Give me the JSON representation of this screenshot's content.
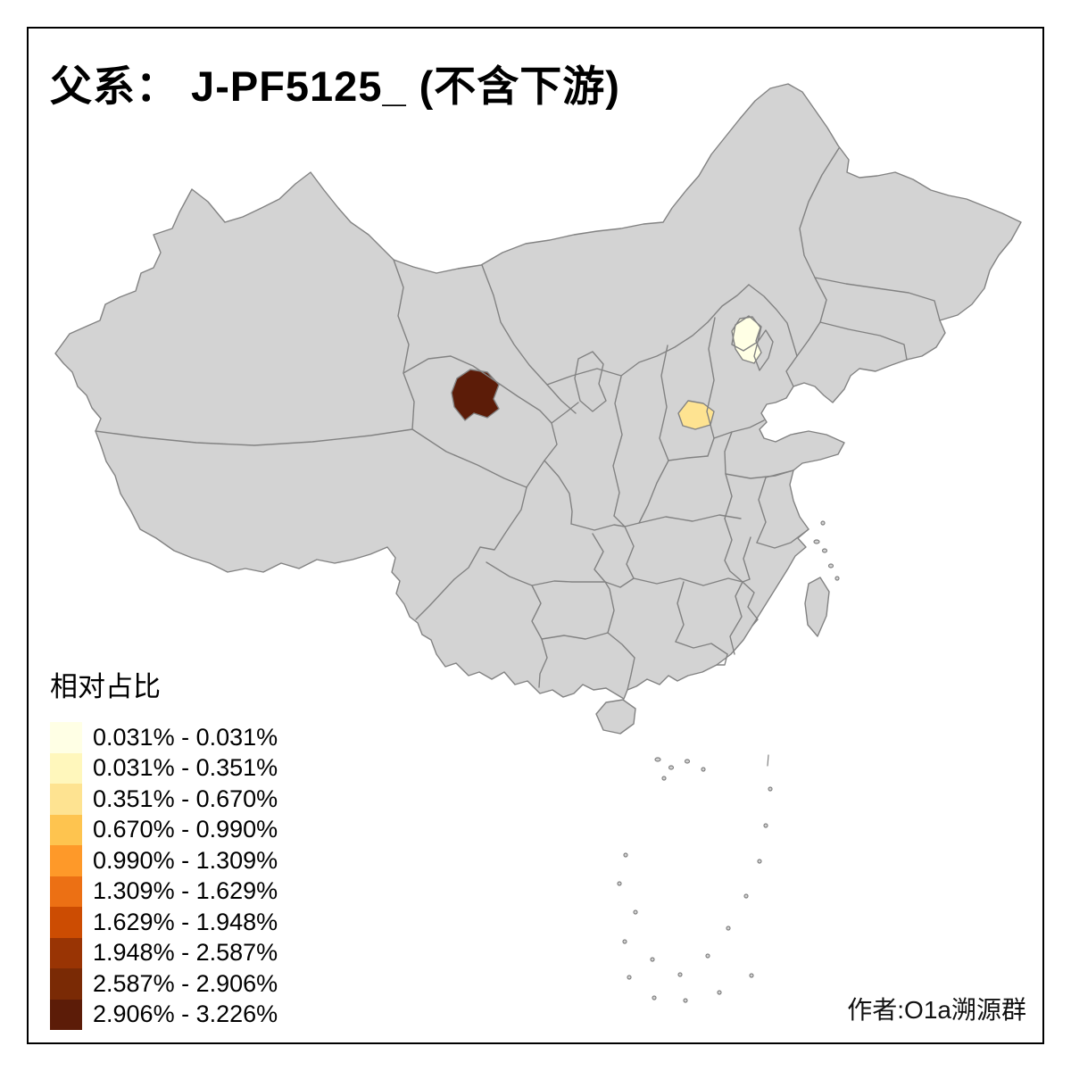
{
  "figure": {
    "title": "父系： J-PF5125_ (不含下游)",
    "attribution": "作者:O1a溯源群"
  },
  "legend": {
    "title": "相对占比",
    "entries": [
      {
        "label": "0.031% - 0.031%",
        "color": "#FFFFE5"
      },
      {
        "label": "0.031% - 0.351%",
        "color": "#FFF7BC"
      },
      {
        "label": "0.351% - 0.670%",
        "color": "#FEE391"
      },
      {
        "label": "0.670% - 0.990%",
        "color": "#FEC44F"
      },
      {
        "label": "0.990% - 1.309%",
        "color": "#FE9929"
      },
      {
        "label": "1.309% - 1.629%",
        "color": "#EC7014"
      },
      {
        "label": "1.629% - 1.948%",
        "color": "#CC4C02"
      },
      {
        "label": "1.948% - 2.587%",
        "color": "#993404"
      },
      {
        "label": "2.587% - 2.906%",
        "color": "#7A2A05"
      },
      {
        "label": "2.906% - 3.226%",
        "color": "#5C1C08"
      }
    ]
  },
  "map": {
    "base_fill": "#D3D3D3",
    "boundary_color": "#828282",
    "regions": [
      {
        "id": "region-qinghai-area",
        "value_class": "2.906% - 3.226%",
        "color": "#5C1C08"
      },
      {
        "id": "region-shanxi-henan-area",
        "value_class": "0.351% - 0.670%",
        "color": "#FEE391"
      },
      {
        "id": "region-beijing-tianjin-area",
        "value_class": "0.031% - 0.031%",
        "color": "#FFFFE5"
      }
    ]
  }
}
